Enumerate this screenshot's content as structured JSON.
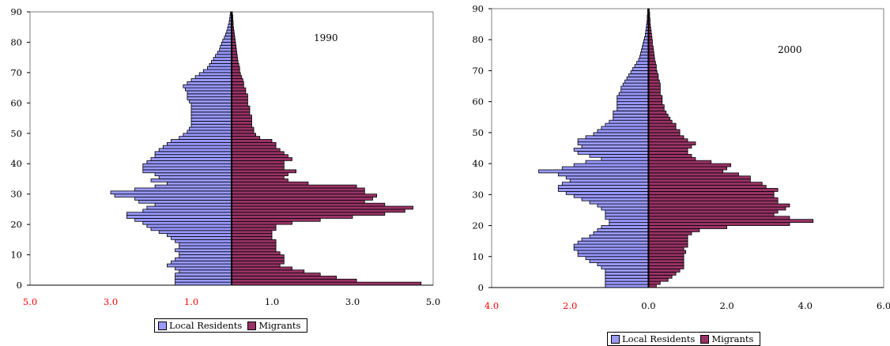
{
  "colors": {
    "local": "#9999ff",
    "migrant": "#993366",
    "axis": "#000000",
    "negative_tick": "#ff0000"
  },
  "legend": {
    "local": "Local Residents",
    "migrant": "Migrants"
  },
  "chart_data": [
    {
      "type": "bar",
      "orientation": "horizontal-pyramid",
      "annotation": "1990",
      "ylim": [
        0,
        90
      ],
      "y_ticks": [
        "0",
        "10",
        "20",
        "30",
        "40",
        "50",
        "60",
        "70",
        "80",
        "90"
      ],
      "xlim": [
        -5,
        5
      ],
      "x_tick_values": [
        -5,
        -3,
        -1,
        1,
        3,
        5
      ],
      "x_ticks": [
        "5.0",
        "3.0",
        "1.0",
        "1.0",
        "3.0",
        "5.0"
      ],
      "grid": false,
      "legend_position": "bottom",
      "series": [
        {
          "name": "Local Residents",
          "values": [
            1.4,
            1.4,
            1.4,
            1.4,
            1.3,
            1.4,
            1.6,
            1.5,
            1.4,
            1.3,
            1.3,
            1.4,
            1.3,
            1.3,
            1.4,
            1.5,
            1.6,
            1.8,
            2.0,
            2.1,
            2.2,
            2.4,
            2.6,
            2.6,
            2.2,
            2.1,
            1.9,
            2.3,
            2.4,
            2.9,
            3.0,
            2.4,
            1.9,
            1.6,
            2.0,
            1.8,
            1.9,
            2.2,
            2.2,
            2.2,
            2.1,
            2.0,
            1.9,
            1.9,
            1.8,
            1.7,
            1.6,
            1.5,
            1.3,
            1.2,
            1.1,
            1.05,
            1.0,
            1.0,
            1.0,
            1.0,
            1.0,
            1.0,
            1.0,
            1.0,
            1.05,
            1.1,
            1.1,
            1.1,
            1.15,
            1.2,
            1.1,
            1.0,
            0.9,
            0.8,
            0.7,
            0.6,
            0.55,
            0.5,
            0.45,
            0.4,
            0.35,
            0.3,
            0.28,
            0.25,
            0.22,
            0.18,
            0.15,
            0.12,
            0.1,
            0.08,
            0.06,
            0.05,
            0.04,
            0.03
          ]
        },
        {
          "name": "Migrants",
          "values": [
            4.7,
            3.1,
            2.6,
            2.2,
            1.8,
            1.5,
            1.2,
            1.3,
            1.3,
            1.3,
            1.2,
            1.1,
            1.1,
            1.1,
            1.1,
            1.0,
            1.0,
            1.0,
            1.1,
            1.1,
            1.5,
            2.2,
            3.0,
            3.8,
            4.3,
            4.5,
            3.8,
            3.3,
            3.5,
            3.6,
            3.3,
            3.3,
            3.1,
            1.9,
            1.4,
            1.3,
            1.4,
            1.6,
            1.3,
            1.3,
            1.3,
            1.5,
            1.4,
            1.3,
            1.2,
            1.1,
            1.1,
            1.0,
            0.7,
            0.6,
            0.55,
            0.55,
            0.5,
            0.5,
            0.5,
            0.5,
            0.45,
            0.45,
            0.45,
            0.4,
            0.4,
            0.4,
            0.4,
            0.35,
            0.35,
            0.3,
            0.3,
            0.28,
            0.25,
            0.22,
            0.2,
            0.2,
            0.18,
            0.16,
            0.15,
            0.14,
            0.13,
            0.12,
            0.11,
            0.1,
            0.09,
            0.08,
            0.07,
            0.06,
            0.05,
            0.04,
            0.04,
            0.03,
            0.03,
            0.02
          ]
        }
      ]
    },
    {
      "type": "bar",
      "orientation": "horizontal-pyramid",
      "annotation": "2000",
      "ylim": [
        0,
        90
      ],
      "y_ticks": [
        "0",
        "10",
        "20",
        "30",
        "40",
        "50",
        "60",
        "70",
        "80",
        "90"
      ],
      "xlim": [
        -4,
        6
      ],
      "x_tick_values": [
        -4,
        -2,
        0,
        2,
        4,
        6
      ],
      "x_ticks": [
        "4.0",
        "2.0",
        "0.0",
        "2.0",
        "4.0",
        "6.0"
      ],
      "grid": false,
      "legend_position": "bottom",
      "series": [
        {
          "name": "Local Residents",
          "values": [
            1.1,
            1.1,
            1.1,
            1.1,
            1.1,
            1.1,
            1.2,
            1.3,
            1.5,
            1.6,
            1.8,
            1.8,
            1.9,
            1.9,
            1.8,
            1.7,
            1.5,
            1.4,
            1.3,
            1.2,
            1.0,
            1.0,
            1.1,
            1.1,
            1.1,
            1.2,
            1.3,
            1.5,
            1.7,
            1.9,
            2.1,
            2.3,
            2.3,
            2.2,
            2.0,
            2.1,
            2.3,
            2.8,
            2.2,
            1.9,
            1.6,
            1.2,
            1.5,
            1.8,
            1.9,
            1.7,
            1.8,
            1.8,
            1.6,
            1.4,
            1.3,
            1.2,
            1.1,
            1.0,
            0.9,
            0.9,
            0.9,
            0.8,
            0.8,
            0.8,
            0.8,
            0.8,
            0.75,
            0.7,
            0.7,
            0.65,
            0.6,
            0.55,
            0.5,
            0.45,
            0.4,
            0.35,
            0.3,
            0.25,
            0.22,
            0.2,
            0.18,
            0.16,
            0.14,
            0.12,
            0.1,
            0.08,
            0.07,
            0.06,
            0.05,
            0.04,
            0.03,
            0.03,
            0.02,
            0.02
          ]
        },
        {
          "name": "Migrants",
          "values": [
            0.2,
            0.3,
            0.5,
            0.6,
            0.7,
            0.8,
            0.9,
            0.9,
            0.9,
            0.9,
            0.9,
            0.95,
            0.9,
            1.0,
            1.0,
            1.0,
            1.0,
            1.1,
            1.3,
            2.0,
            3.6,
            4.2,
            3.6,
            3.2,
            3.3,
            3.5,
            3.6,
            3.3,
            3.3,
            3.2,
            3.2,
            3.3,
            3.0,
            2.9,
            2.6,
            2.6,
            2.3,
            1.9,
            2.0,
            2.1,
            1.6,
            1.2,
            1.1,
            1.0,
            1.0,
            1.1,
            1.2,
            1.0,
            0.9,
            0.8,
            0.8,
            0.7,
            0.7,
            0.6,
            0.55,
            0.5,
            0.45,
            0.4,
            0.4,
            0.35,
            0.35,
            0.35,
            0.3,
            0.3,
            0.3,
            0.3,
            0.28,
            0.25,
            0.25,
            0.22,
            0.2,
            0.2,
            0.18,
            0.16,
            0.15,
            0.14,
            0.13,
            0.12,
            0.1,
            0.1,
            0.09,
            0.08,
            0.07,
            0.06,
            0.05,
            0.04,
            0.04,
            0.03,
            0.03,
            0.02
          ]
        }
      ]
    }
  ]
}
